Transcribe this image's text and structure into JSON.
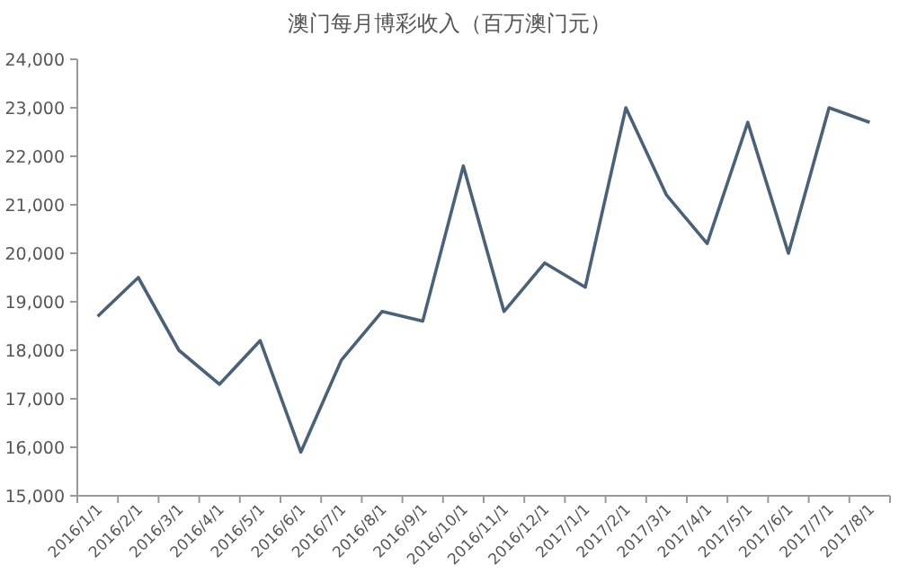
{
  "chart_data": {
    "type": "line",
    "title": "澳门每月博彩收入（百万澳门元）",
    "categories": [
      "2016/1/1",
      "2016/2/1",
      "2016/3/1",
      "2016/4/1",
      "2016/5/1",
      "2016/6/1",
      "2016/7/1",
      "2016/8/1",
      "2016/9/1",
      "2016/10/1",
      "2016/11/1",
      "2016/12/1",
      "2017/1/1",
      "2017/2/1",
      "2017/3/1",
      "2017/4/1",
      "2017/5/1",
      "2017/6/1",
      "2017/7/1",
      "2017/8/1"
    ],
    "values": [
      18700,
      19500,
      18000,
      17300,
      18200,
      15900,
      17800,
      18800,
      18600,
      21800,
      18800,
      19800,
      19300,
      23000,
      21200,
      20200,
      22700,
      20000,
      23000,
      22700
    ],
    "color": "#4a6178",
    "ylim": [
      15000,
      24000
    ],
    "yticks": [
      {
        "value": 15000,
        "label": "15,000"
      },
      {
        "value": 16000,
        "label": "16,000"
      },
      {
        "value": 17000,
        "label": "17,000"
      },
      {
        "value": 18000,
        "label": "18,000"
      },
      {
        "value": 19000,
        "label": "19,000"
      },
      {
        "value": 20000,
        "label": "20,000"
      },
      {
        "value": 21000,
        "label": "21,000"
      },
      {
        "value": 22000,
        "label": "22,000"
      },
      {
        "value": 23000,
        "label": "23,000"
      },
      {
        "value": 24000,
        "label": "24,000"
      }
    ],
    "marker": "none",
    "line_style": "solid"
  }
}
